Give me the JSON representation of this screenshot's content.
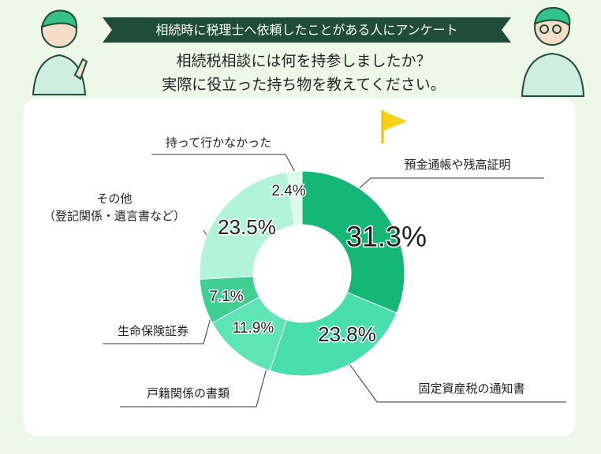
{
  "header": {
    "banner": "相続時に税理士へ依頼したことがある人にアンケート",
    "title_lines": [
      "相続税相談には何を持参しましたか？",
      "実際に役立った持ち物を教えてください。"
    ]
  },
  "chart_data": {
    "type": "donut",
    "categories": [
      "預金通帳や残高証明",
      "固定資産税の通知書",
      "戸籍関係の書類",
      "生命保険証券",
      "その他\n（登記関係・遺言書など）",
      "持って行かなかった"
    ],
    "values": [
      31.3,
      23.8,
      11.9,
      7.1,
      23.5,
      2.4
    ],
    "value_labels": [
      "31.3%",
      "23.8%",
      "11.9%",
      "7.1%",
      "23.5%",
      "2.4%"
    ],
    "colors": [
      "#14b775",
      "#48dfac",
      "#5ee5b5",
      "#3fcf93",
      "#b2f4d9",
      "#dbfbee"
    ]
  }
}
